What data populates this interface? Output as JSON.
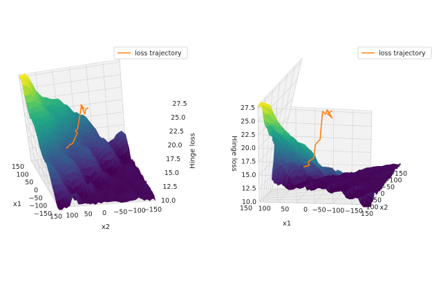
{
  "chart_data": [
    {
      "type": "surface3d",
      "legend": [
        "loss trajectory"
      ],
      "legend_position": "top-right",
      "xlabel": "x1",
      "ylabel": "x2",
      "zlabel": "Hinge loss",
      "x_ticks": [
        "150",
        "100",
        "50",
        "0",
        "−50",
        "−100",
        "−150"
      ],
      "y_ticks": [
        "150",
        "100",
        "50",
        "0",
        "−50",
        "−100",
        "−150"
      ],
      "z_ticks": [
        "10.0",
        "12.5",
        "15.0",
        "17.5",
        "20.0",
        "22.5",
        "25.0",
        "27.5"
      ],
      "xlim": [
        -150,
        150
      ],
      "ylim": [
        -150,
        150
      ],
      "zlim": [
        10,
        28
      ],
      "grid": true,
      "colormap": "viridis",
      "trajectory_color": "#ff7f0e",
      "trajectory": [
        [
          0,
          0,
          24
        ],
        [
          10,
          5,
          23.5
        ],
        [
          -5,
          12,
          23
        ],
        [
          8,
          18,
          24.5
        ],
        [
          14,
          8,
          23.5
        ],
        [
          22,
          12,
          24
        ],
        [
          18,
          30,
          19.5
        ],
        [
          25,
          35,
          19
        ],
        [
          30,
          28,
          18.5
        ],
        [
          28,
          45,
          16.5
        ],
        [
          40,
          50,
          16
        ],
        [
          35,
          62,
          15.5
        ],
        [
          50,
          58,
          15.2
        ]
      ]
    },
    {
      "type": "surface3d",
      "legend": [
        "loss trajectory"
      ],
      "legend_position": "top-right",
      "xlabel": "x1",
      "ylabel": "x2",
      "zlabel": "Hinge loss",
      "x_ticks": [
        "150",
        "100",
        "50",
        "0",
        "−50",
        "−100",
        "−150"
      ],
      "y_ticks": [
        "150",
        "100",
        "50",
        "0",
        "−50",
        "−100",
        "−150"
      ],
      "z_ticks": [
        "10.0",
        "12.5",
        "15.0",
        "17.5",
        "20.0",
        "22.5",
        "25.0",
        "27.5"
      ],
      "xlim": [
        -150,
        150
      ],
      "ylim": [
        -150,
        150
      ],
      "zlim": [
        10,
        28
      ],
      "grid": true,
      "colormap": "viridis",
      "trajectory_color": "#ff7f0e",
      "trajectory": [
        [
          0,
          0,
          24
        ],
        [
          10,
          5,
          23.5
        ],
        [
          -5,
          12,
          23
        ],
        [
          8,
          18,
          24.5
        ],
        [
          14,
          8,
          23.5
        ],
        [
          22,
          12,
          24
        ],
        [
          18,
          30,
          19.5
        ],
        [
          25,
          35,
          19
        ],
        [
          30,
          28,
          18.5
        ],
        [
          28,
          45,
          16.5
        ],
        [
          40,
          50,
          16
        ],
        [
          35,
          62,
          15.5
        ],
        [
          50,
          58,
          15.2
        ]
      ]
    }
  ]
}
